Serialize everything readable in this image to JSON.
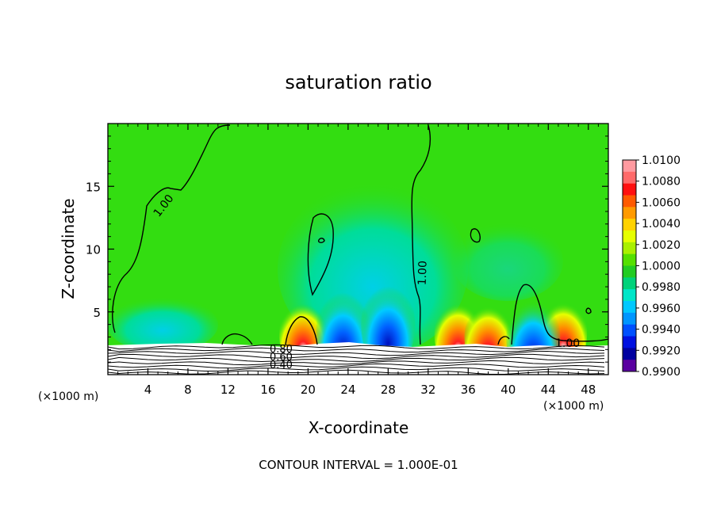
{
  "chart_data": {
    "type": "heatmap",
    "title": "saturation ratio",
    "xlabel": "X-coordinate",
    "ylabel": "Z-coordinate",
    "x_unit_left": "(×1000 m)",
    "x_unit_right": "(×1000 m)",
    "xlim": [
      0,
      50
    ],
    "ylim": [
      0,
      20
    ],
    "xticks": [
      "4",
      "8",
      "12",
      "16",
      "20",
      "24",
      "28",
      "32",
      "36",
      "40",
      "44",
      "48"
    ],
    "yticks": [
      "5",
      "10",
      "15"
    ],
    "contour_interval_text": "CONTOUR INTERVAL = 1.000E-01",
    "contour_labels": [
      "1.00",
      "1.00",
      "1.00",
      "0.80",
      "0.60",
      "0.40"
    ],
    "colorbar": {
      "labels": [
        "1.0100",
        "1.0080",
        "1.0060",
        "1.0040",
        "1.0020",
        "1.0000",
        "0.9980",
        "0.9960",
        "0.9940",
        "0.9920",
        "0.9900"
      ],
      "colors": [
        "#ff9aa0",
        "#ff6a6a",
        "#ff1010",
        "#ff5a00",
        "#ff9a00",
        "#ffd200",
        "#e6ff00",
        "#aaf000",
        "#55e000",
        "#22cc22",
        "#00d27a",
        "#00e6c8",
        "#00c8ff",
        "#0096ff",
        "#0050ff",
        "#0010e0",
        "#0000a0",
        "#5a00a0"
      ]
    },
    "series": [
      {
        "cx": 19.5,
        "cz": 3.2,
        "value": 1.009
      },
      {
        "cx": 23.5,
        "cz": 3.5,
        "value": 0.993
      },
      {
        "cx": 28,
        "cz": 4.0,
        "value": 0.994
      },
      {
        "cx": 35,
        "cz": 3.2,
        "value": 1.008
      },
      {
        "cx": 38,
        "cz": 3.0,
        "value": 1.006
      },
      {
        "cx": 45.5,
        "cz": 3.3,
        "value": 1.007
      },
      {
        "cx": 42.5,
        "cz": 2.9,
        "value": 0.995
      }
    ]
  }
}
